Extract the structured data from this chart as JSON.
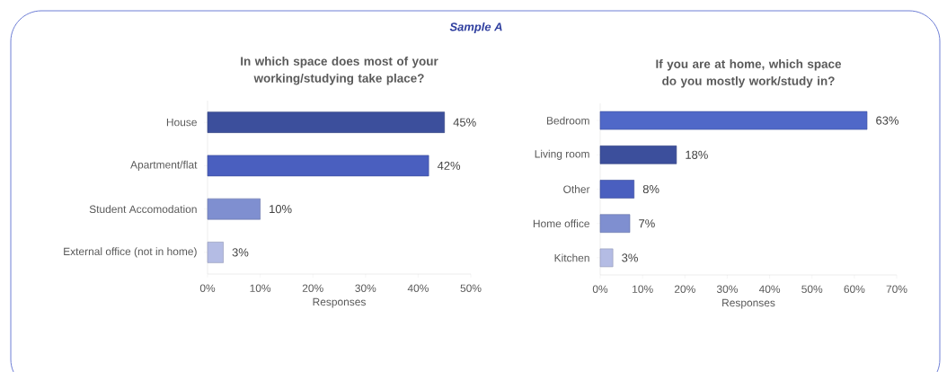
{
  "chart_data": [
    {
      "type": "bar",
      "orientation": "horizontal",
      "title": "In which space does most of your working/studying take place?",
      "xlabel": "Responses",
      "annotations": [
        "Sample A"
      ],
      "categories": [
        "House",
        "Apartment/flat",
        "Student Accomodation",
        "External office (not in home)"
      ],
      "values": [
        45,
        42,
        10,
        3
      ],
      "value_labels": [
        "45%",
        "42%",
        "10%",
        "3%"
      ],
      "colors": [
        "#3c4f9c",
        "#4a5fbf",
        "#7f8fd0",
        "#b4bce4"
      ],
      "xlim": [
        0,
        50
      ],
      "xticks": [
        {
          "value": 0,
          "label": "0%"
        },
        {
          "value": 10,
          "label": "10%"
        },
        {
          "value": 20,
          "label": "20%"
        },
        {
          "value": 30,
          "label": "30%"
        },
        {
          "value": 40,
          "label": "40%"
        },
        {
          "value": 50,
          "label": "50%"
        }
      ]
    },
    {
      "type": "bar",
      "orientation": "horizontal",
      "title": "If you are at home, which space do you mostly work/study in?",
      "xlabel": "Responses",
      "categories": [
        "Bedroom",
        "Living room",
        "Other",
        "Home office",
        "Kitchen"
      ],
      "values": [
        63,
        18,
        8,
        7,
        3
      ],
      "value_labels": [
        "63%",
        "18%",
        "8%",
        "7%",
        "3%"
      ],
      "colors": [
        "#5068c8",
        "#3c4f9c",
        "#4a5fbf",
        "#7f8fd0",
        "#b4bce4"
      ],
      "xlim": [
        0,
        70
      ],
      "xticks": [
        {
          "value": 0,
          "label": "0%"
        },
        {
          "value": 10,
          "label": "10%"
        },
        {
          "value": 20,
          "label": "20%"
        },
        {
          "value": 30,
          "label": "30%"
        },
        {
          "value": 40,
          "label": "40%"
        },
        {
          "value": 50,
          "label": "50%"
        },
        {
          "value": 60,
          "label": "60%"
        },
        {
          "value": 70,
          "label": "70%"
        }
      ]
    }
  ]
}
